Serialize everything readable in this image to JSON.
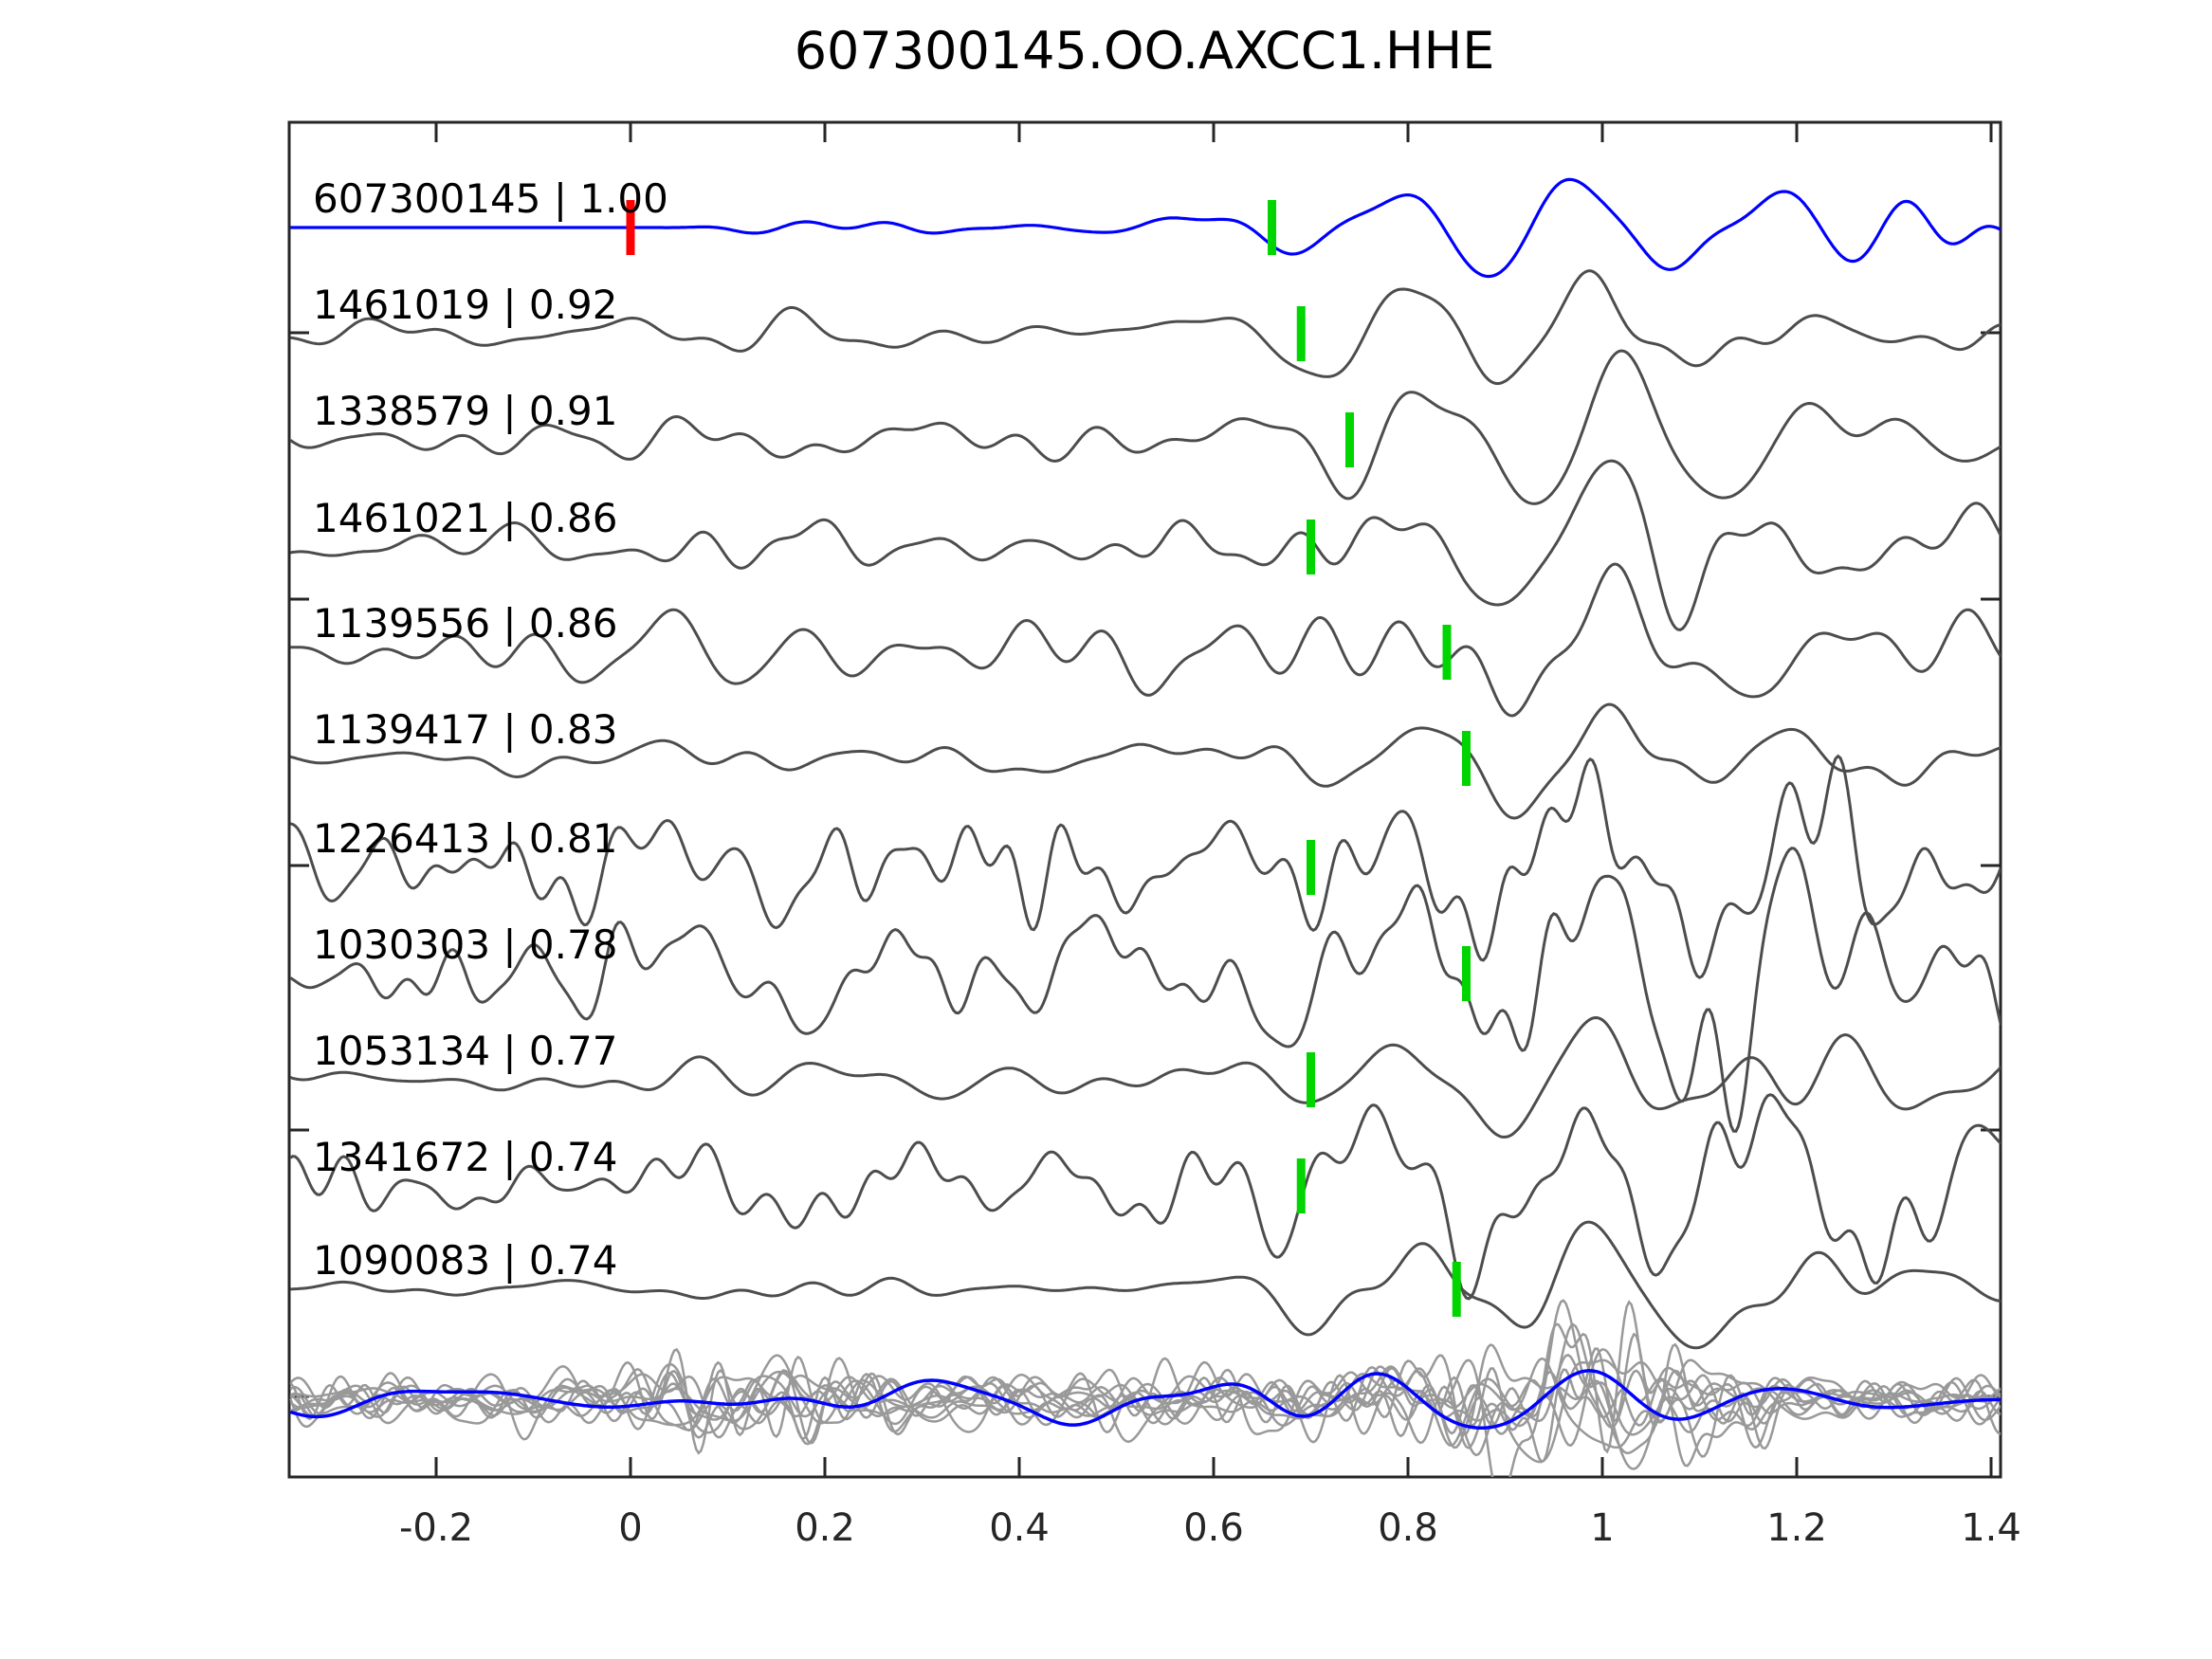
{
  "chart_data": {
    "type": "line",
    "title": "607300145.OO.AXCC1.HHE",
    "xlabel": "",
    "ylabel": "",
    "xlim": [
      -0.35,
      1.41
    ],
    "x_tick_values": [
      -0.2,
      0,
      0.2,
      0.4,
      0.6,
      0.8,
      1.0,
      1.2,
      1.4
    ],
    "x_tick_labels": [
      "-0.2",
      "0",
      "0.2",
      "0.4",
      "0.6",
      "0.8",
      "1",
      "1.2",
      "1.4"
    ],
    "grid": false,
    "legend": "none",
    "colors": {
      "template_trace": "#0000ff",
      "detection_trace": "#4d4d4d",
      "overlay_trace": "#999999",
      "pick_marker": "#00d500",
      "origin_marker": "#ff0000",
      "axis": "#262626",
      "text": "#000000"
    },
    "traces": [
      {
        "id": "607300145",
        "score": "1.00",
        "label": "607300145 | 1.00",
        "pick_time": 0.66,
        "origin_time": 0.0,
        "is_template": true
      },
      {
        "id": "1461019",
        "score": "0.92",
        "label": "1461019 | 0.92",
        "pick_time": 0.69
      },
      {
        "id": "1338579",
        "score": "0.91",
        "label": "1338579 | 0.91",
        "pick_time": 0.74
      },
      {
        "id": "1461021",
        "score": "0.86",
        "label": "1461021 | 0.86",
        "pick_time": 0.7
      },
      {
        "id": "1139556",
        "score": "0.86",
        "label": "1139556 | 0.86",
        "pick_time": 0.84
      },
      {
        "id": "1139417",
        "score": "0.83",
        "label": "1139417 | 0.83",
        "pick_time": 0.86
      },
      {
        "id": "1226413",
        "score": "0.81",
        "label": "1226413 | 0.81",
        "pick_time": 0.7
      },
      {
        "id": "1030303",
        "score": "0.78",
        "label": "1030303 | 0.78",
        "pick_time": 0.86
      },
      {
        "id": "1053134",
        "score": "0.77",
        "label": "1053134 | 0.77",
        "pick_time": 0.7
      },
      {
        "id": "1341672",
        "score": "0.74",
        "label": "1341672 | 0.74",
        "pick_time": 0.69
      },
      {
        "id": "1090083",
        "score": "0.74",
        "label": "1090083 | 0.74",
        "pick_time": 0.85
      }
    ],
    "overlay_stack": {
      "description": "all detection waveforms overlaid at bottom row",
      "gray_trace_count": 10,
      "has_template_overlay": true
    }
  }
}
